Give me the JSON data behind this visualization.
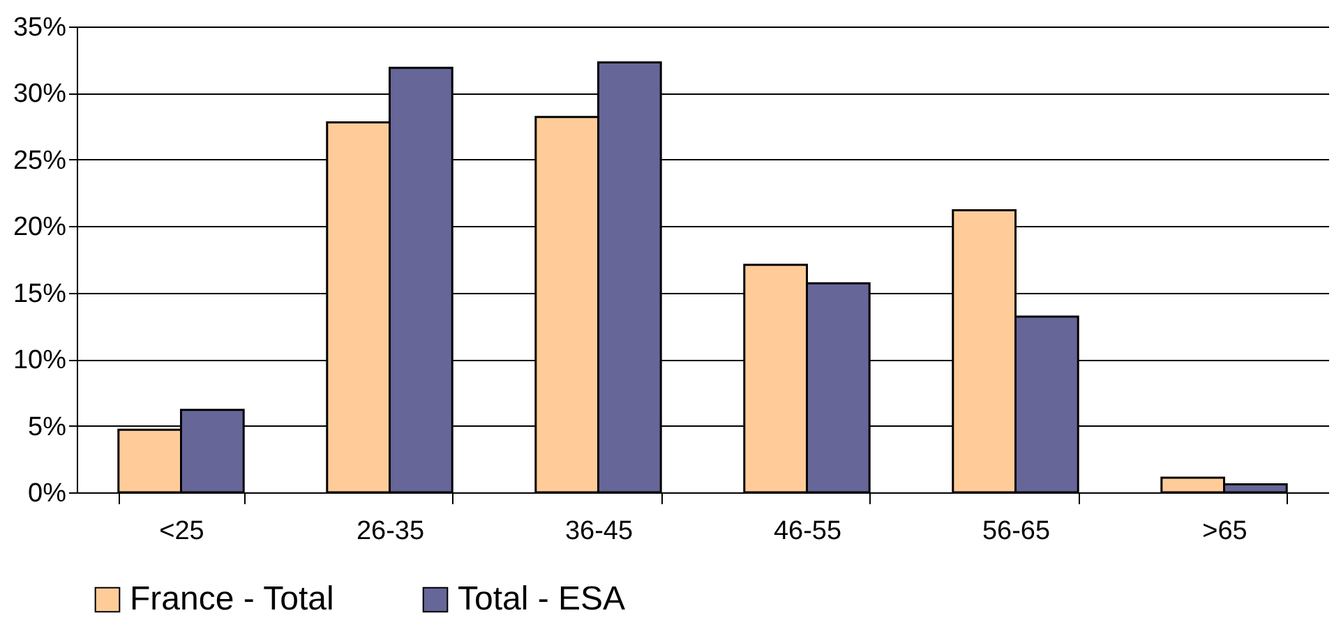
{
  "chart_data": {
    "type": "bar",
    "categories": [
      "<25",
      "26-35",
      "36-45",
      "46-55",
      "56-65",
      ">65"
    ],
    "series": [
      {
        "name": "France - Total",
        "color": "#ffcc99",
        "values": [
          4.7,
          27.8,
          28.2,
          17.1,
          21.2,
          1.1
        ]
      },
      {
        "name": "Total - ESA",
        "color": "#666699",
        "values": [
          6.2,
          31.9,
          32.3,
          15.7,
          13.2,
          0.6
        ]
      }
    ],
    "ylim": [
      0,
      35
    ],
    "yticks": [
      {
        "value": 0,
        "label": "0%"
      },
      {
        "value": 5,
        "label": "5%"
      },
      {
        "value": 10,
        "label": "10%"
      },
      {
        "value": 15,
        "label": "15%"
      },
      {
        "value": 20,
        "label": "20%"
      },
      {
        "value": 25,
        "label": "25%"
      },
      {
        "value": 30,
        "label": "30%"
      },
      {
        "value": 35,
        "label": "35%"
      }
    ],
    "grid": "y",
    "legend": "bottom"
  }
}
